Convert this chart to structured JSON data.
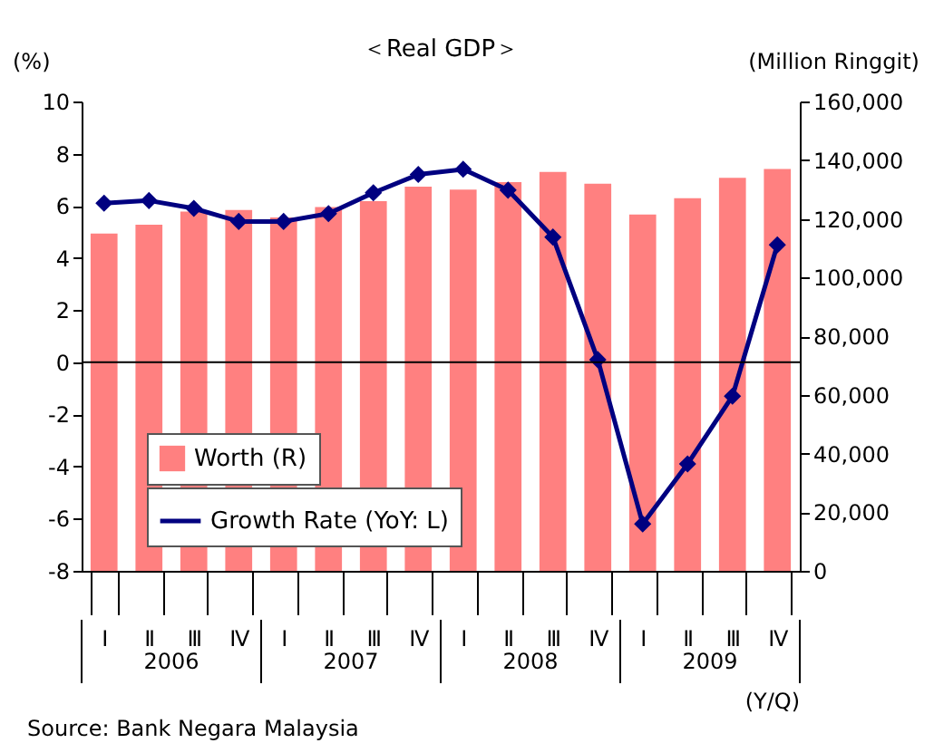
{
  "chart_data": {
    "type": "bar",
    "title": "＜Real GDP＞",
    "ylabel": "(%)",
    "y2label": "(Million Ringgit)",
    "xlabel": "(Y/Q)",
    "categories": [
      "Ⅰ",
      "Ⅱ",
      "Ⅲ",
      "Ⅳ",
      "Ⅰ",
      "Ⅱ",
      "Ⅲ",
      "Ⅳ",
      "Ⅰ",
      "Ⅱ",
      "Ⅲ",
      "Ⅳ",
      "Ⅰ",
      "Ⅱ",
      "Ⅲ",
      "Ⅳ"
    ],
    "series": [
      {
        "name": "Worth (R)",
        "axis": "y2",
        "color": "#ff8080",
        "values": [
          115000,
          118000,
          122500,
          123000,
          120500,
          124000,
          126000,
          131000,
          130000,
          132500,
          136000,
          132000,
          121500,
          127000,
          134000,
          137000
        ]
      },
      {
        "name": "Growth Rate (YoY: L)",
        "type": "line",
        "color": "#000080",
        "marker": "diamond",
        "line_style": "solid",
        "values": [
          6.1,
          6.2,
          5.9,
          5.4,
          5.4,
          5.7,
          6.5,
          7.2,
          7.4,
          6.6,
          4.8,
          0.1,
          -6.2,
          -3.9,
          -1.3,
          4.5
        ]
      }
    ],
    "ylim": [
      -8,
      10
    ],
    "yticks": [
      -8,
      -6,
      -4,
      -2,
      0,
      2,
      4,
      6,
      8,
      10
    ],
    "y2lim": [
      0,
      160000
    ],
    "y2ticks": [
      0,
      {
        "value": 20000,
        "label": "20,000"
      },
      {
        "value": 40000,
        "label": "40,000"
      },
      {
        "value": 60000,
        "label": "60,000"
      },
      {
        "value": 80000,
        "label": "80,000"
      },
      {
        "value": 100000,
        "label": "100,000"
      },
      {
        "value": 120000,
        "label": "120,000"
      },
      {
        "value": 140000,
        "label": "140,000"
      },
      {
        "value": 160000,
        "label": "160,000"
      }
    ],
    "ref_lines": [
      {
        "axis": "y",
        "value": 0,
        "color": "#000000"
      }
    ],
    "annotations": [
      "2006",
      "2007",
      "2008",
      "2009",
      "Source: Bank Negara Malaysia"
    ],
    "legend": "bottom left",
    "grid": false
  }
}
